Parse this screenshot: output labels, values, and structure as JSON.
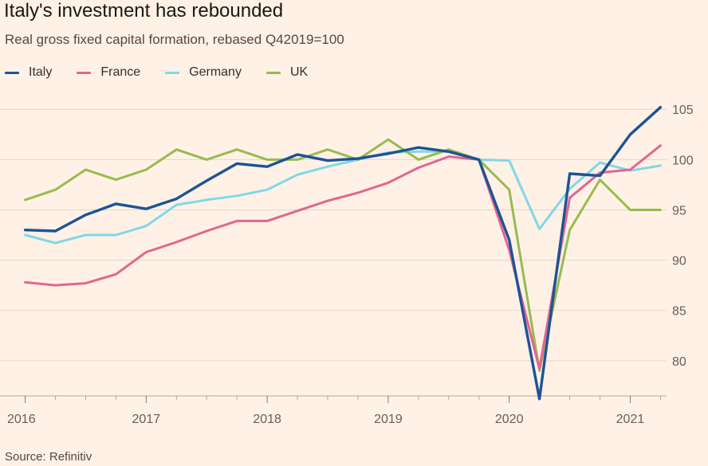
{
  "title": "Italy's investment has rebounded",
  "subtitle": "Real gross fixed capital formation, rebased Q42019=100",
  "source": "Source: Refinitiv",
  "colors": {
    "background": "#fff1e5",
    "Italy": "#1d5395",
    "France": "#e2668f",
    "Germany": "#7fd8e8",
    "UK": "#98bb50",
    "grid": "#e3d6cb",
    "axis": "#b3a79c"
  },
  "legend": [
    {
      "name": "Italy"
    },
    {
      "name": "France"
    },
    {
      "name": "Germany"
    },
    {
      "name": "UK"
    }
  ],
  "chart_data": {
    "type": "line",
    "title": "Italy's investment has rebounded",
    "subtitle": "Real gross fixed capital formation, rebased Q42019=100",
    "xlabel": "",
    "ylabel": "",
    "x": [
      2016.0,
      2016.25,
      2016.5,
      2016.75,
      2017.0,
      2017.25,
      2017.5,
      2017.75,
      2018.0,
      2018.25,
      2018.5,
      2018.75,
      2019.0,
      2019.25,
      2019.5,
      2019.75,
      2020.0,
      2020.25,
      2020.5,
      2020.75,
      2021.0,
      2021.25
    ],
    "xlim": [
      2015.97,
      2021.3
    ],
    "ylim": [
      76.5,
      107
    ],
    "x_ticks": [
      2016,
      2017,
      2018,
      2019,
      2020,
      2021
    ],
    "x_tick_labels": [
      "2016",
      "2017",
      "2018",
      "2019",
      "2020",
      "2021"
    ],
    "y_ticks": [
      80,
      85,
      90,
      95,
      100,
      105
    ],
    "y_tick_labels": [
      "80",
      "85",
      "90",
      "95",
      "100",
      "105"
    ],
    "grid": true,
    "legend_position": "top-left",
    "series": [
      {
        "name": "Germany",
        "values": [
          92.5,
          91.7,
          92.5,
          92.5,
          93.4,
          95.5,
          96.0,
          96.4,
          97.0,
          98.5,
          99.3,
          100.0,
          100.7,
          100.8,
          100.8,
          100.0,
          99.9,
          93.1,
          97.1,
          99.7,
          98.9,
          99.4
        ]
      },
      {
        "name": "UK",
        "values": [
          96.0,
          97.0,
          99.0,
          98.0,
          99.0,
          101.0,
          100.0,
          101.0,
          100.0,
          100.0,
          101.0,
          100.0,
          102.0,
          100.0,
          101.0,
          100.0,
          97.0,
          79.0,
          93.0,
          98.0,
          95.0,
          95.0
        ]
      },
      {
        "name": "France",
        "values": [
          87.8,
          87.5,
          87.7,
          88.6,
          90.8,
          91.8,
          92.9,
          93.9,
          93.9,
          94.9,
          95.9,
          96.7,
          97.7,
          99.2,
          100.3,
          100.0,
          91.0,
          79.2,
          96.2,
          98.7,
          99.0,
          101.4
        ]
      },
      {
        "name": "Italy",
        "values": [
          93.0,
          92.9,
          94.5,
          95.6,
          95.1,
          96.1,
          97.9,
          99.6,
          99.3,
          100.5,
          99.9,
          100.1,
          100.6,
          101.2,
          100.8,
          100.0,
          92.0,
          76.2,
          98.6,
          98.4,
          102.5,
          105.2
        ]
      }
    ]
  }
}
